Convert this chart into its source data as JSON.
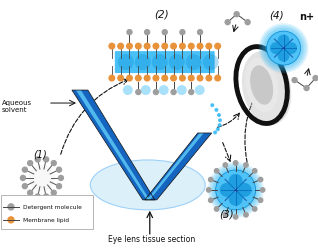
{
  "background_color": "#ffffff",
  "label_aqueous": "Aqueous\nsolvent",
  "label_1": "(1)",
  "label_2": "(2)",
  "label_3": "(3)",
  "label_4": "(4)",
  "label_nplus": "n+",
  "label_bottom": "Eye lens tissue section",
  "legend_detergent": "Detergent molecule",
  "legend_lipid": "Membrane lipid",
  "blue_dark": "#1565C0",
  "blue_mid": "#2196F3",
  "blue_light": "#64B5F6",
  "blue_fill": "#B3E5FC",
  "cyan_bright": "#29B6F6",
  "orange_lipid": "#E8923A",
  "gray_molecule": "#9E9E9E",
  "gray_dark": "#444444",
  "black": "#111111",
  "white": "#ffffff",
  "probe_blue": "#1565C0",
  "probe_highlight": "#5BC8F5"
}
